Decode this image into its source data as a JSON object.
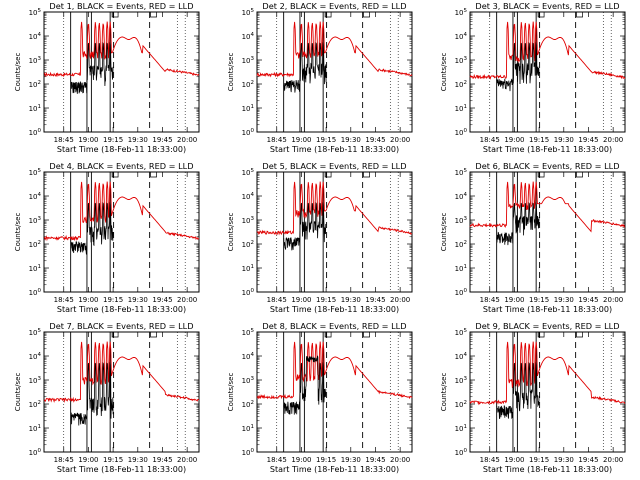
{
  "chart_data": [
    {
      "type": "line",
      "title": "Det 1, BLACK = Events, RED = LLD",
      "xlabel": "Start Time (18-Feb-11 18:33:00)",
      "ylabel": "Counts/sec",
      "x_ticks": [
        "18:45",
        "19:00",
        "19:15",
        "19:30",
        "19:45",
        "20:00"
      ],
      "y_ticks": [
        "10^0",
        "10^1",
        "10^2",
        "10^3",
        "10^4",
        "10^5"
      ],
      "y_scale": "log",
      "ylim": [
        1,
        100000
      ],
      "red_base": 250,
      "black_base": 60,
      "black_dense": false,
      "colors": {
        "events": "#000000",
        "lld": "#e00000"
      },
      "series": [
        {
          "name": "Events",
          "color": "#000000"
        },
        {
          "name": "LLD",
          "color": "#e00000"
        }
      ]
    },
    {
      "type": "line",
      "title": "Det 2, BLACK = Events, RED = LLD",
      "xlabel": "Start Time (18-Feb-11 18:33:00)",
      "ylabel": "Counts/sec",
      "x_ticks": [
        "18:45",
        "19:00",
        "19:15",
        "19:30",
        "19:45",
        "20:00"
      ],
      "y_ticks": [
        "10^0",
        "10^1",
        "10^2",
        "10^3",
        "10^4",
        "10^5"
      ],
      "y_scale": "log",
      "ylim": [
        1,
        100000
      ],
      "red_base": 250,
      "black_base": 70,
      "black_dense": false,
      "colors": {
        "events": "#000000",
        "lld": "#e00000"
      },
      "series": [
        {
          "name": "Events",
          "color": "#000000"
        },
        {
          "name": "LLD",
          "color": "#e00000"
        }
      ]
    },
    {
      "type": "line",
      "title": "Det 3, BLACK = Events, RED = LLD",
      "xlabel": "Start Time (18-Feb-11 18:33:00)",
      "ylabel": "Counts/sec",
      "x_ticks": [
        "18:45",
        "19:00",
        "19:15",
        "19:30",
        "19:45",
        "20:00"
      ],
      "y_ticks": [
        "10^0",
        "10^1",
        "10^2",
        "10^3",
        "10^4",
        "10^5"
      ],
      "y_scale": "log",
      "ylim": [
        1,
        100000
      ],
      "red_base": 200,
      "black_base": 80,
      "black_dense": false,
      "colors": {
        "events": "#000000",
        "lld": "#e00000"
      },
      "series": [
        {
          "name": "Events",
          "color": "#000000"
        },
        {
          "name": "LLD",
          "color": "#e00000"
        }
      ]
    },
    {
      "type": "line",
      "title": "Det 4, BLACK = Events, RED = LLD",
      "xlabel": "Start Time (18-Feb-11 18:33:00)",
      "ylabel": "Counts/sec",
      "x_ticks": [
        "18:45",
        "19:00",
        "19:15",
        "19:30",
        "19:45",
        "20:00"
      ],
      "y_ticks": [
        "10^0",
        "10^1",
        "10^2",
        "10^3",
        "10^4",
        "10^5"
      ],
      "y_scale": "log",
      "ylim": [
        1,
        100000
      ],
      "red_base": 180,
      "black_base": 60,
      "black_dense": false,
      "colors": {
        "events": "#000000",
        "lld": "#e00000"
      },
      "series": [
        {
          "name": "Events",
          "color": "#000000"
        },
        {
          "name": "LLD",
          "color": "#e00000"
        }
      ]
    },
    {
      "type": "line",
      "title": "Det 5, BLACK = Events, RED = LLD",
      "xlabel": "Start Time (18-Feb-11 18:33:00)",
      "ylabel": "Counts/sec",
      "x_ticks": [
        "18:45",
        "19:00",
        "19:15",
        "19:30",
        "19:45",
        "20:00"
      ],
      "y_ticks": [
        "10^0",
        "10^1",
        "10^2",
        "10^3",
        "10^4",
        "10^5"
      ],
      "y_scale": "log",
      "ylim": [
        1,
        100000
      ],
      "red_base": 300,
      "black_base": 90,
      "black_dense": false,
      "colors": {
        "events": "#000000",
        "lld": "#e00000"
      },
      "series": [
        {
          "name": "Events",
          "color": "#000000"
        },
        {
          "name": "LLD",
          "color": "#e00000"
        }
      ]
    },
    {
      "type": "line",
      "title": "Det 6, BLACK = Events, RED = LLD",
      "xlabel": "Start Time (18-Feb-11 18:33:00)",
      "ylabel": "Counts/sec",
      "x_ticks": [
        "18:45",
        "19:00",
        "19:15",
        "19:30",
        "19:45",
        "20:00"
      ],
      "y_ticks": [
        "10^0",
        "10^1",
        "10^2",
        "10^3",
        "10^4",
        "10^5"
      ],
      "y_scale": "log",
      "ylim": [
        1,
        100000
      ],
      "red_base": 600,
      "black_base": 150,
      "black_dense": false,
      "colors": {
        "events": "#000000",
        "lld": "#e00000"
      },
      "series": [
        {
          "name": "Events",
          "color": "#000000"
        },
        {
          "name": "LLD",
          "color": "#e00000"
        }
      ]
    },
    {
      "type": "line",
      "title": "Det 7, BLACK = Events, RED = LLD",
      "xlabel": "Start Time (18-Feb-11 18:33:00)",
      "ylabel": "Counts/sec",
      "x_ticks": [
        "18:45",
        "19:00",
        "19:15",
        "19:30",
        "19:45",
        "20:00"
      ],
      "y_ticks": [
        "10^0",
        "10^1",
        "10^2",
        "10^3",
        "10^4",
        "10^5"
      ],
      "y_scale": "log",
      "ylim": [
        1,
        100000
      ],
      "red_base": 150,
      "black_base": 20,
      "black_dense": false,
      "colors": {
        "events": "#000000",
        "lld": "#e00000"
      },
      "series": [
        {
          "name": "Events",
          "color": "#000000"
        },
        {
          "name": "LLD",
          "color": "#e00000"
        }
      ]
    },
    {
      "type": "line",
      "title": "Det 8, BLACK = Events, RED = LLD",
      "xlabel": "Start Time (18-Feb-11 18:33:00)",
      "ylabel": "Counts/sec",
      "x_ticks": [
        "18:45",
        "19:00",
        "19:15",
        "19:30",
        "19:45",
        "20:00"
      ],
      "y_ticks": [
        "10^0",
        "10^1",
        "10^2",
        "10^3",
        "10^4",
        "10^5"
      ],
      "y_scale": "log",
      "ylim": [
        1,
        100000
      ],
      "red_base": 200,
      "black_base": 60,
      "black_dense": true,
      "colors": {
        "events": "#000000",
        "lld": "#e00000"
      },
      "series": [
        {
          "name": "Events",
          "color": "#000000"
        },
        {
          "name": "LLD",
          "color": "#e00000"
        }
      ]
    },
    {
      "type": "line",
      "title": "Det 9, BLACK = Events, RED = LLD",
      "xlabel": "Start Time (18-Feb-11 18:33:00)",
      "ylabel": "Counts/sec",
      "x_ticks": [
        "18:45",
        "19:00",
        "19:15",
        "19:30",
        "19:45",
        "20:00"
      ],
      "y_ticks": [
        "10^0",
        "10^1",
        "10^2",
        "10^3",
        "10^4",
        "10^5"
      ],
      "y_scale": "log",
      "ylim": [
        1,
        100000
      ],
      "red_base": 120,
      "black_base": 40,
      "black_dense": false,
      "colors": {
        "events": "#000000",
        "lld": "#e00000"
      },
      "series": [
        {
          "name": "Events",
          "color": "#000000"
        },
        {
          "name": "LLD",
          "color": "#e00000"
        }
      ]
    }
  ]
}
